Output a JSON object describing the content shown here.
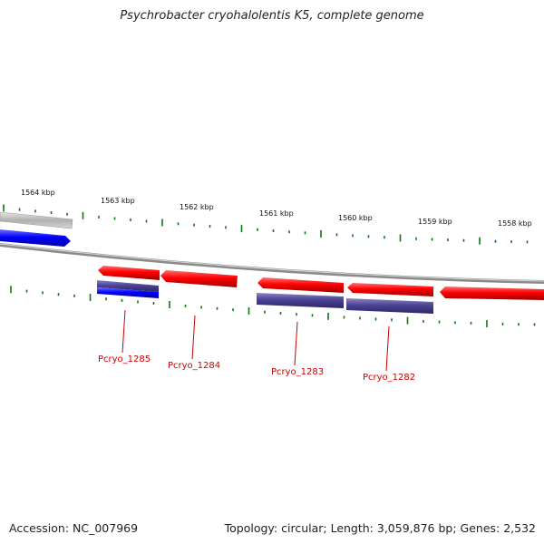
{
  "title": "Psychrobacter cryohalolentis K5, complete genome",
  "footer": {
    "accession": "Accession: NC_007969",
    "summary": "Topology: circular; Length: 3,059,876 bp; Genes: 2,532"
  },
  "scale_labels": [
    "1564 kbp",
    "1563 kbp",
    "1562 kbp",
    "1561 kbp",
    "1560 kbp",
    "1559 kbp",
    "1558 kbp"
  ],
  "gene_labels": [
    "Pcryo_1285",
    "Pcryo_1284",
    "Pcryo_1283",
    "Pcryo_1282"
  ],
  "colors": {
    "forward_cds": "#ff0000",
    "reverse_cds": "#0000ff",
    "other_feature": "#4b4394",
    "backbone": "#888888",
    "tick": "#0a7a0a",
    "label_line": "#cc0000"
  }
}
